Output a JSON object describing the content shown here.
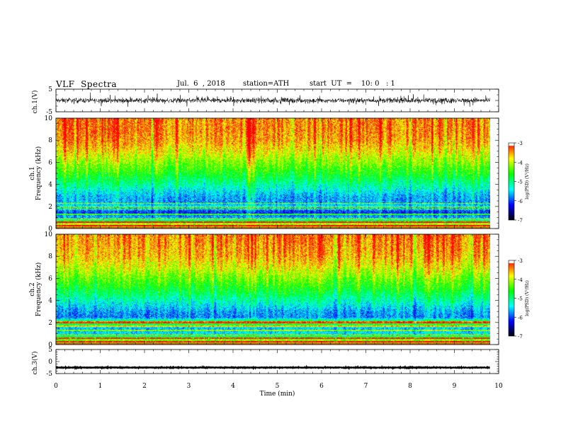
{
  "header": {
    "title": "VLF  Spectra",
    "date": "Jul.  6  , 2018",
    "station": "station=ATH",
    "start": "start  UT  =    10: 0   : 1"
  },
  "chart_data": [
    {
      "type": "line",
      "panel": "ch1-waveform",
      "ylabel": "ch.1(V)",
      "ylim": [
        -5,
        5
      ],
      "yticks": [
        "5",
        "-5"
      ],
      "xlim": [
        0,
        10
      ],
      "data_xmax": 9.8,
      "series": [
        {
          "color": "#000000",
          "baseline": 0.0,
          "noise_amplitude": 1.5,
          "note_values": "dense noisy waveform around 0 V"
        }
      ]
    },
    {
      "type": "heatmap",
      "panel": "ch1-spectrogram",
      "ylabel_line1": "ch.1",
      "ylabel_line2": "Frequency  (kHz)",
      "ylim": [
        0,
        10
      ],
      "yticks": [
        "0",
        "2",
        "4",
        "6",
        "8",
        "10"
      ],
      "xlim": [
        0,
        10
      ],
      "data_xmax": 9.8,
      "colorbar": {
        "label": "log(PSD) (V²/Hz)",
        "range": [
          -7,
          -3
        ],
        "ticks": [
          "-3",
          "-4",
          "-5",
          "-6",
          "-7"
        ]
      },
      "profile_khz": [
        [
          0,
          -4.6
        ],
        [
          0.5,
          -4.0
        ],
        [
          1.0,
          -5.6
        ],
        [
          1.5,
          -6.1
        ],
        [
          2.0,
          -5.4
        ],
        [
          2.5,
          -5.7
        ],
        [
          3.0,
          -5.6
        ],
        [
          4.0,
          -5.1
        ],
        [
          5.0,
          -4.6
        ],
        [
          6.0,
          -4.2
        ],
        [
          7.0,
          -3.8
        ],
        [
          8.0,
          -3.5
        ],
        [
          9.0,
          -3.4
        ],
        [
          10.0,
          -3.4
        ]
      ],
      "lines_khz": [
        0.3,
        0.6,
        0.9,
        1.3,
        1.8,
        2.0,
        2.3
      ]
    },
    {
      "type": "heatmap",
      "panel": "ch2-spectrogram",
      "ylabel_line1": "ch.2",
      "ylabel_line2": "Frequency  (kHz)",
      "ylim": [
        0,
        10
      ],
      "yticks": [
        "0",
        "2",
        "4",
        "6",
        "8",
        "10"
      ],
      "xlim": [
        0,
        10
      ],
      "data_xmax": 9.8,
      "colorbar": {
        "label": "log(PSD) (V²/Hz)",
        "range": [
          -7,
          -3
        ],
        "ticks": [
          "-3",
          "-4",
          "-5",
          "-6",
          "-7"
        ]
      },
      "profile_khz": [
        [
          0,
          -4.6
        ],
        [
          0.5,
          -4.2
        ],
        [
          1.0,
          -5.4
        ],
        [
          1.5,
          -5.6
        ],
        [
          2.0,
          -4.4
        ],
        [
          2.5,
          -5.8
        ],
        [
          3.0,
          -5.7
        ],
        [
          4.0,
          -5.2
        ],
        [
          5.0,
          -4.7
        ],
        [
          6.0,
          -4.3
        ],
        [
          7.0,
          -3.9
        ],
        [
          8.0,
          -3.6
        ],
        [
          9.0,
          -3.5
        ],
        [
          10.0,
          -3.4
        ]
      ],
      "lines_khz": [
        0.3,
        0.6,
        0.9,
        1.3,
        1.7,
        2.0,
        2.1
      ]
    },
    {
      "type": "line",
      "panel": "ch3-waveform",
      "ylabel": "ch.3(V)",
      "ylim": [
        -5,
        5
      ],
      "yticks": [
        "5",
        "0",
        "-5"
      ],
      "xlim": [
        0,
        10
      ],
      "xticks": [
        "0",
        "1",
        "2",
        "3",
        "4",
        "5",
        "6",
        "7",
        "8",
        "9",
        "10"
      ],
      "xlabel": "Time  (min)",
      "data_xmax": 9.8,
      "series": [
        {
          "color": "#000000",
          "baseline": -2.5,
          "noise_amplitude": 0.2,
          "note_values": "flat thick trace near -2.5 V"
        }
      ]
    }
  ],
  "colorscale": [
    "#000000",
    "#0000ff",
    "#00ffff",
    "#00ff00",
    "#ffff00",
    "#ff0000",
    "#ffffff"
  ]
}
